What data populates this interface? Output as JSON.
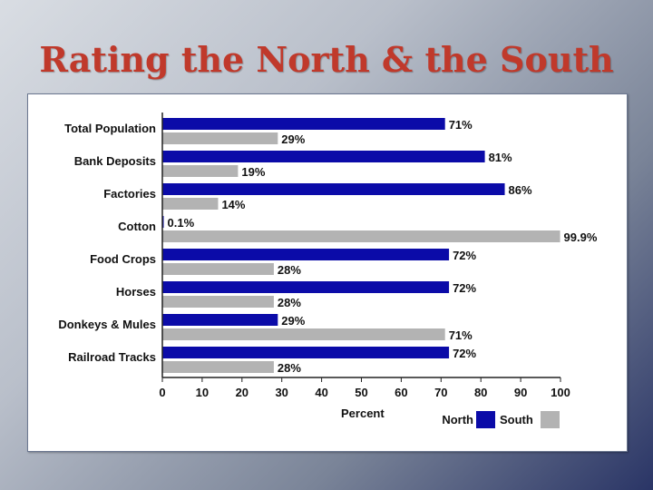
{
  "slide": {
    "title": "Rating the North & the South"
  },
  "colors": {
    "north": "#0b0ba8",
    "south": "#b3b3b3",
    "title": "#c0392b"
  },
  "chart_data": {
    "type": "bar",
    "orientation": "horizontal",
    "categories": [
      "Total Population",
      "Bank Deposits",
      "Factories",
      "Cotton",
      "Food Crops",
      "Horses",
      "Donkeys & Mules",
      "Railroad Tracks"
    ],
    "series": [
      {
        "name": "North",
        "values": [
          71,
          81,
          86,
          0.1,
          72,
          72,
          29,
          72
        ],
        "labels": [
          "71%",
          "81%",
          "86%",
          "0.1%",
          "72%",
          "72%",
          "29%",
          "72%"
        ]
      },
      {
        "name": "South",
        "values": [
          29,
          19,
          14,
          99.9,
          28,
          28,
          71,
          28
        ],
        "labels": [
          "29%",
          "19%",
          "14%",
          "99.9%",
          "28%",
          "28%",
          "71%",
          "28%"
        ]
      }
    ],
    "xlabel": "Percent",
    "xlim": [
      0,
      100
    ],
    "xticks": [
      0,
      10,
      20,
      30,
      40,
      50,
      60,
      70,
      80,
      90,
      100
    ],
    "legend": "bottom-right",
    "grid": false
  }
}
